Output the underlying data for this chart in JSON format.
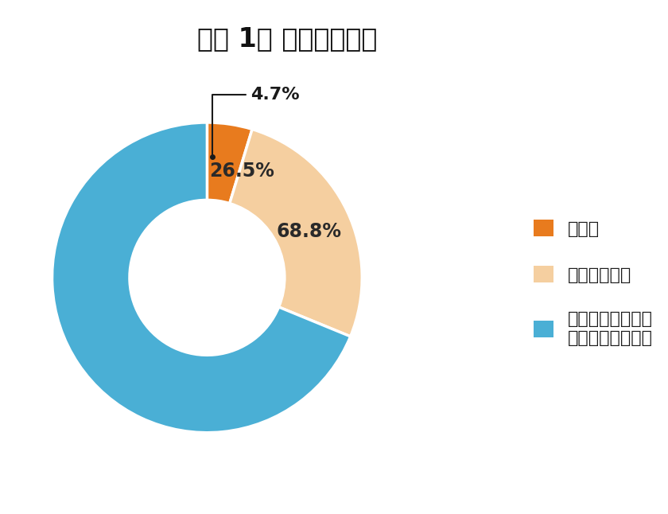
{
  "title": "【図 1】 回答者の内訳",
  "slices": [
    4.7,
    26.5,
    68.8
  ],
  "labels": [
    "当事者",
    "当事者の家族",
    "自分自身も家族も\n当事者ではない人"
  ],
  "colors": [
    "#E87B1E",
    "#F5CFA0",
    "#4AAFD5"
  ],
  "pct_labels": [
    "4.7%",
    "26.5%",
    "68.8%"
  ],
  "background_color": "#ffffff",
  "title_fontsize": 24,
  "legend_fontsize": 16,
  "pct_fontsize": 17,
  "annotation_fontsize": 16
}
